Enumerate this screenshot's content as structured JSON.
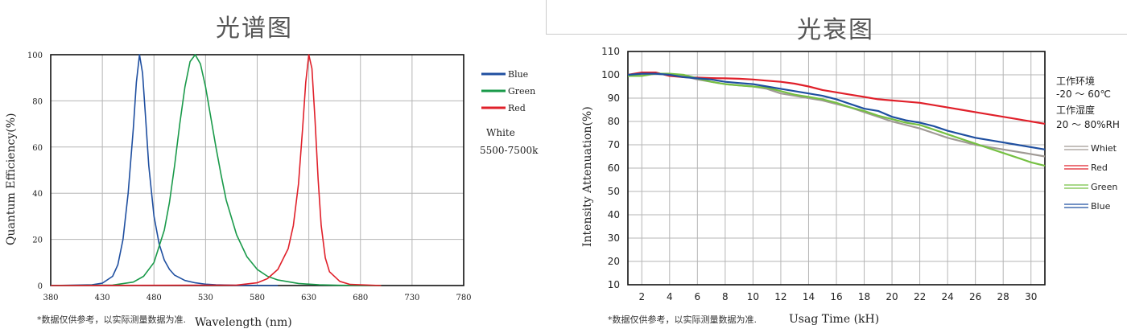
{
  "left": {
    "title": "光谱图",
    "note": "*数据仅供参考，以实际测量数据为准.",
    "white_label": "White",
    "white_range": "5500-7500k"
  },
  "right": {
    "title": "光衰图",
    "note": "*数据仅供参考，以实际测量数据为准.",
    "env_title": "工作环境",
    "env_temp": "-20 ～ 60℃",
    "humidity_title": "工作湿度",
    "humidity_range": "20 ～ 80%RH"
  },
  "chart_data": [
    {
      "type": "line",
      "title": "光谱图",
      "xlabel": "Wavelength  (nm)",
      "ylabel": "Quantum  Efficiency(%)",
      "xlim": [
        380,
        780
      ],
      "ylim": [
        0,
        100
      ],
      "xticks": [
        380,
        430,
        480,
        530,
        580,
        630,
        680,
        730,
        780
      ],
      "yticks": [
        0,
        20,
        40,
        60,
        80,
        100
      ],
      "grid": true,
      "legend_position": "right",
      "series": [
        {
          "name": "Blue",
          "color": "#1f4fa0",
          "x": [
            380,
            420,
            430,
            440,
            445,
            450,
            455,
            460,
            463,
            466,
            469,
            472,
            475,
            480,
            485,
            490,
            495,
            500,
            510,
            520,
            530,
            540,
            560,
            600
          ],
          "y": [
            0,
            0.3,
            1,
            4,
            9,
            20,
            40,
            68,
            88,
            100,
            92,
            72,
            52,
            30,
            18,
            11,
            7,
            4.5,
            2.2,
            1.2,
            0.6,
            0.3,
            0.1,
            0
          ]
        },
        {
          "name": "Green",
          "color": "#1a9a4a",
          "x": [
            380,
            440,
            460,
            470,
            480,
            490,
            495,
            500,
            505,
            510,
            515,
            520,
            525,
            530,
            535,
            540,
            545,
            550,
            560,
            570,
            580,
            590,
            600,
            620,
            640,
            660,
            700
          ],
          "y": [
            0,
            0.2,
            1.5,
            4,
            10,
            24,
            36,
            52,
            70,
            86,
            97,
            100,
            96,
            86,
            73,
            60,
            48,
            37,
            22,
            12.5,
            7,
            4,
            2.4,
            0.9,
            0.3,
            0.1,
            0
          ]
        },
        {
          "name": "Red",
          "color": "#e0202a",
          "x": [
            380,
            560,
            580,
            590,
            600,
            610,
            615,
            620,
            624,
            627,
            630,
            633,
            636,
            639,
            642,
            646,
            650,
            660,
            670,
            700
          ],
          "y": [
            0,
            0.2,
            1.2,
            3,
            7,
            16,
            26,
            44,
            68,
            88,
            100,
            94,
            72,
            46,
            26,
            12,
            6,
            1.8,
            0.5,
            0
          ]
        }
      ]
    },
    {
      "type": "line",
      "title": "光衰图",
      "xlabel": "Usag Time (kH)",
      "ylabel": "Intensity Attenuation(%)",
      "xlim": [
        1,
        31
      ],
      "ylim": [
        10,
        110
      ],
      "xticks": [
        2,
        4,
        6,
        8,
        10,
        12,
        14,
        16,
        18,
        20,
        22,
        24,
        26,
        28,
        30
      ],
      "yticks": [
        10,
        20,
        30,
        40,
        50,
        60,
        70,
        80,
        90,
        100,
        110
      ],
      "grid": true,
      "legend_position": "right",
      "series": [
        {
          "name": "Whiet",
          "color": "#a09a95",
          "x": [
            1,
            2,
            3,
            4,
            5,
            6,
            7,
            8,
            9,
            10,
            11,
            12,
            13,
            14,
            15,
            16,
            17,
            18,
            19,
            20,
            21,
            22,
            23,
            24,
            25,
            26,
            27,
            28,
            29,
            30,
            31
          ],
          "y": [
            100,
            100,
            100.5,
            100,
            99.5,
            98,
            97,
            96,
            95.5,
            95,
            94,
            92,
            91,
            90,
            89,
            87.5,
            86,
            84,
            82,
            80,
            78.5,
            77,
            75,
            73,
            71.5,
            70,
            69,
            68,
            67,
            66,
            65
          ]
        },
        {
          "name": "Red",
          "color": "#e0202a",
          "x": [
            1,
            2,
            3,
            4,
            5,
            6,
            7,
            8,
            9,
            10,
            11,
            12,
            13,
            14,
            15,
            16,
            17,
            18,
            19,
            20,
            21,
            22,
            23,
            24,
            25,
            26,
            27,
            28,
            29,
            30,
            31
          ],
          "y": [
            100,
            101,
            101,
            99.5,
            99,
            98.8,
            98.6,
            98.5,
            98.3,
            98,
            97.5,
            97,
            96.2,
            95,
            93.5,
            92.5,
            91.5,
            90.5,
            89.5,
            89,
            88.5,
            88,
            87,
            86,
            85,
            84,
            83,
            82,
            81,
            80,
            79
          ]
        },
        {
          "name": "Green",
          "color": "#76c043",
          "x": [
            1,
            2,
            3,
            4,
            5,
            6,
            7,
            8,
            9,
            10,
            11,
            12,
            13,
            14,
            15,
            16,
            17,
            18,
            19,
            20,
            21,
            22,
            23,
            24,
            25,
            26,
            27,
            28,
            29,
            30,
            31
          ],
          "y": [
            99.5,
            99.5,
            100.5,
            100.5,
            100,
            98.5,
            97,
            96,
            95.5,
            95,
            94.5,
            93,
            91.5,
            90.5,
            89.5,
            88,
            86,
            84.5,
            82.5,
            81,
            79.5,
            78.5,
            76.5,
            74.5,
            72.5,
            70.5,
            68.5,
            66.5,
            64.5,
            62.5,
            61
          ]
        },
        {
          "name": "Blue",
          "color": "#1f4fa0",
          "x": [
            1,
            2,
            3,
            4,
            5,
            6,
            7,
            8,
            9,
            10,
            11,
            12,
            13,
            14,
            15,
            16,
            17,
            18,
            19,
            20,
            21,
            22,
            23,
            24,
            25,
            26,
            27,
            28,
            29,
            30,
            31
          ],
          "y": [
            100,
            100.5,
            100.5,
            100,
            99,
            98.5,
            98,
            97,
            96.5,
            96,
            95,
            94,
            93,
            92,
            91,
            89.5,
            87.5,
            85.5,
            84.5,
            82,
            80.5,
            79.5,
            78,
            76,
            74.5,
            73,
            72,
            71,
            70,
            69,
            68
          ]
        }
      ]
    }
  ]
}
